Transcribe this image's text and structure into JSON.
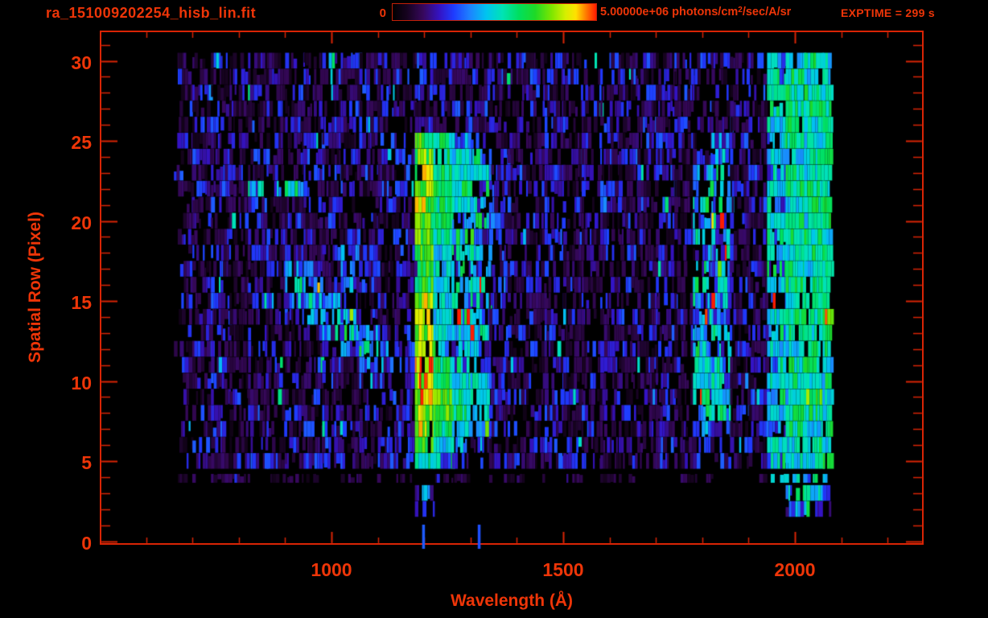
{
  "header": {
    "title": "ra_151009202254_hisb_lin.fit",
    "exptime_label": "EXPTIME = 299 s",
    "colorbar": {
      "min_label": "0",
      "max_label": "5.00000e+06",
      "units_prefix": " photons/cm",
      "units_sup": "2",
      "units_suffix": "/sec/A/sr"
    }
  },
  "colors": {
    "background": "#000000",
    "accent_text": "#ee3508",
    "accent_line": "#d92405",
    "colormap_stops": [
      [
        0.0,
        "#000000"
      ],
      [
        0.07,
        "#16031f"
      ],
      [
        0.15,
        "#37085c"
      ],
      [
        0.23,
        "#3413c4"
      ],
      [
        0.3,
        "#1e3cff"
      ],
      [
        0.38,
        "#1d83ff"
      ],
      [
        0.46,
        "#00c4f0"
      ],
      [
        0.54,
        "#00e3b4"
      ],
      [
        0.62,
        "#00df5f"
      ],
      [
        0.7,
        "#1ed927"
      ],
      [
        0.78,
        "#7ce600"
      ],
      [
        0.85,
        "#d6ef00"
      ],
      [
        0.9,
        "#ffe100"
      ],
      [
        0.95,
        "#ff7b00"
      ],
      [
        1.0,
        "#ff1c00"
      ]
    ]
  },
  "chart_data": {
    "type": "heatmap",
    "xlabel": "Wavelength (Å)",
    "ylabel": "Spatial Row (Pixel)",
    "xlim": [
      500,
      2278
    ],
    "ylim": [
      0,
      31.9
    ],
    "x_major_ticks": [
      1000,
      1500,
      2000
    ],
    "x_minor_from": 600,
    "x_minor_to": 2200,
    "x_minor_step": 100,
    "y_major_ticks": [
      0,
      5,
      10,
      15,
      20,
      25,
      30
    ],
    "y_minor_from": 1,
    "y_minor_to": 31,
    "y_minor_step": 1,
    "colorbar_range": [
      0,
      5000000
    ],
    "grid": false,
    "bin_start_angstrom": 660,
    "bin_width_angstrom": 40,
    "intensity_scale": "digits 0-9 map to 0 .. 5e6 photons/cm2/sec/A/sr",
    "rows": [
      {
        "row": 30,
        "values": "112121212212122211212122121222124565"
      },
      {
        "row": 29,
        "values": "211212122121221122122212212121214655"
      },
      {
        "row": 28,
        "values": "121221212122122121221221122212125665"
      },
      {
        "row": 27,
        "values": "212112121212212221122122212121214666"
      },
      {
        "row": 26,
        "values": "122121212221121212212212121222125656"
      },
      {
        "row": 25,
        "values": "212212122122276321212122122213214656"
      },
      {
        "row": 24,
        "values": "122121221212286542122212212124215566"
      },
      {
        "row": 23,
        "values": "212212122121286552212121122134124656"
      },
      {
        "row": 22,
        "values": "122144421212287642122122212143215665"
      },
      {
        "row": 21,
        "values": "212121122122286542212212122144124566"
      },
      {
        "row": 20,
        "values": "121221212121276442122121212134215656"
      },
      {
        "row": 19,
        "values": "212122121212276432212212121243124665"
      },
      {
        "row": 18,
        "values": "122121212321275442122122212134215566"
      },
      {
        "row": 17,
        "values": "212112331321275432212121122143124656"
      },
      {
        "row": 16,
        "values": "122121432321275442122212212144215665"
      },
      {
        "row": 15,
        "values": "212122343212285442212122122134124566"
      },
      {
        "row": 14,
        "values": "122112234321285442122212212143215669"
      },
      {
        "row": 13,
        "values": "212121123432285542212121122134124656"
      },
      {
        "row": 12,
        "values": "122122212343284332122122212144215566"
      },
      {
        "row": 11,
        "values": "212112122133296432212212121254124665"
      },
      {
        "row": 10,
        "values": "122121212122296552122121212154215656"
      },
      {
        "row": 9,
        "values": "212212121212297652212212122145124675"
      },
      {
        "row": 8,
        "values": "122121212121287652122122212144215665"
      },
      {
        "row": 7,
        "values": "212112122212286542212121122133124656"
      },
      {
        "row": 6,
        "values": "122121212122275421122212212123215565"
      },
      {
        "row": 5,
        "values": "221222122212264222212221222122124556"
      },
      {
        "row": 4,
        "values": "101101110110101101110101101110014545"
      },
      {
        "row": 3,
        "values": "000000000000030000000000000000000454"
      },
      {
        "row": 2,
        "values": "000000000000020000000000000000000342"
      },
      {
        "row": 1,
        "values": "000000000000030030000000000000000000"
      }
    ]
  }
}
